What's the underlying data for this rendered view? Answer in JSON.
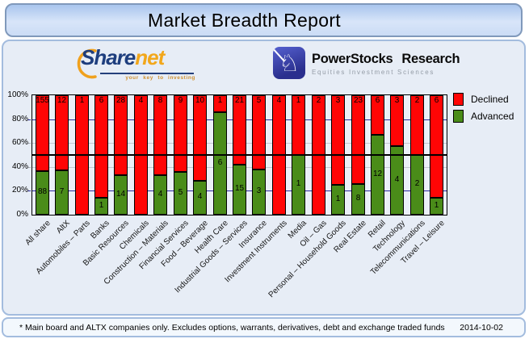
{
  "title": "Market Breadth Report",
  "logos": {
    "sharenet": {
      "part1": "Share",
      "part2": "net",
      "tagline": "your key to investing"
    },
    "powerstocks": {
      "name1": "PowerStocks",
      "name2": "Research",
      "subtitle": "Equities Investment Sciences",
      "icon": "chess-knight-icon"
    }
  },
  "chart_data": {
    "type": "bar",
    "stacked": true,
    "normalized_to_percent": true,
    "title": "Market Breadth Report",
    "categories": [
      "All share",
      "AltX",
      "Automobiles – Parts",
      "Banks",
      "Basic Resources",
      "Chemicals",
      "Construction – Materials",
      "Financial Services",
      "Food – Beverage",
      "Health Care",
      "Industrial Goods – Services",
      "Insurance",
      "Investment Instruments",
      "Media",
      "Oil – Gas",
      "Personal – Household Goods",
      "Real Estate",
      "Retail",
      "Technology",
      "Telecommunications",
      "Travel – Leisure"
    ],
    "series": [
      {
        "name": "Declined",
        "color": "#ff0505",
        "values": [
          155,
          12,
          1,
          6,
          28,
          4,
          8,
          9,
          10,
          1,
          21,
          5,
          4,
          1,
          2,
          3,
          23,
          6,
          3,
          2,
          6
        ]
      },
      {
        "name": "Advanced",
        "color": "#4a8c19",
        "values": [
          88,
          7,
          0,
          1,
          14,
          0,
          4,
          5,
          4,
          6,
          15,
          3,
          0,
          1,
          0,
          1,
          8,
          12,
          4,
          2,
          1
        ]
      }
    ],
    "ylim": [
      0,
      100
    ],
    "yticks": [
      100,
      80,
      60,
      40,
      20,
      0
    ],
    "ytick_labels": [
      "100%",
      "80%",
      "60%",
      "40%",
      "20%",
      "0%"
    ],
    "gridlines": [
      {
        "pct": 80,
        "style": "navy"
      },
      {
        "pct": 60,
        "style": "gray"
      },
      {
        "pct": 40,
        "style": "gray"
      },
      {
        "pct": 20,
        "style": "navy"
      }
    ],
    "midline_pct": 50,
    "legend_position": "top-right",
    "legend": [
      "Declined",
      "Advanced"
    ]
  },
  "footer": {
    "note": "* Main board and ALTX companies only. Excludes options, warrants, derivatives, debt and exchange traded funds",
    "date": "2014-10-02"
  }
}
